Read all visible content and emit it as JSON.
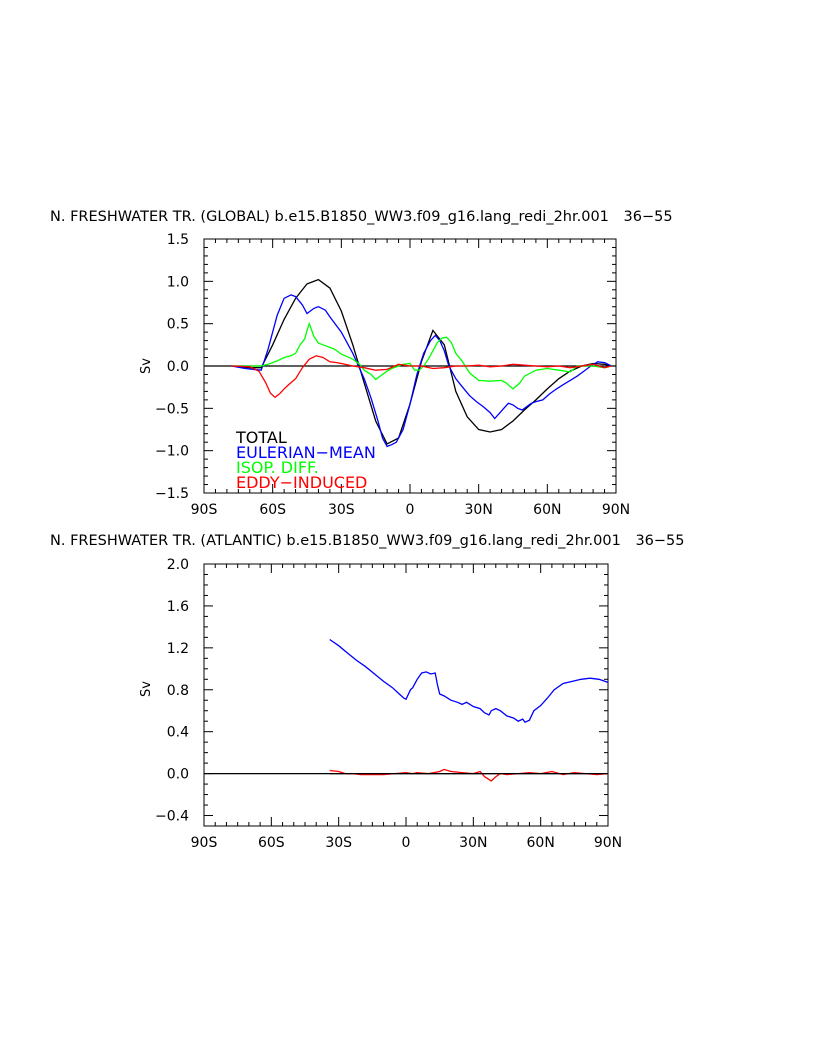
{
  "chart_data": [
    {
      "type": "line",
      "title": "N. FRESHWATER TR. (GLOBAL) b.e15.B1850_WW3.f09_g16.lang_redi_2hr.001 █36-55█",
      "title_text": "N. FRESHWATER TR. (GLOBAL) b.e15.B1850_WW3.f09_g16.lang_redi_2hr.001",
      "title_years": "36−55",
      "xlabel": "",
      "ylabel": "Sv",
      "xlim": [
        -90,
        90
      ],
      "ylim": [
        -1.5,
        1.5
      ],
      "xticks": [
        -90,
        -60,
        -30,
        0,
        30,
        60,
        90
      ],
      "xtick_labels": [
        "90S",
        "60S",
        "30S",
        "0",
        "30N",
        "60N",
        "90N"
      ],
      "yticks": [
        -1.5,
        -1.0,
        -0.5,
        0.0,
        0.5,
        1.0,
        1.5
      ],
      "ytick_labels": [
        "−1.5",
        "−1.0",
        "−0.5",
        "0.0",
        "0.5",
        "1.0",
        "1.5"
      ],
      "zero_line": true,
      "legend_position": "bottom-left",
      "series": [
        {
          "name": "TOTAL",
          "color": "#000000",
          "x": [
            -78,
            -70,
            -65,
            -60,
            -55,
            -50,
            -45,
            -40,
            -35,
            -30,
            -25,
            -20,
            -15,
            -10,
            -5,
            0,
            5,
            10,
            15,
            20,
            25,
            30,
            35,
            40,
            45,
            50,
            55,
            60,
            65,
            70,
            75,
            80,
            85,
            88
          ],
          "y": [
            0.0,
            -0.02,
            -0.02,
            0.25,
            0.55,
            0.8,
            0.97,
            1.02,
            0.92,
            0.65,
            0.25,
            -0.2,
            -0.65,
            -0.92,
            -0.85,
            -0.45,
            0.05,
            0.42,
            0.25,
            -0.3,
            -0.6,
            -0.75,
            -0.78,
            -0.75,
            -0.65,
            -0.52,
            -0.4,
            -0.27,
            -0.15,
            -0.06,
            0.0,
            0.03,
            0.02,
            0.0
          ]
        },
        {
          "name": "EULERIAN−MEAN",
          "color": "#0000ff",
          "x": [
            -78,
            -72,
            -65,
            -62,
            -58,
            -55,
            -52,
            -50,
            -47,
            -45,
            -42,
            -40,
            -37,
            -35,
            -30,
            -25,
            -20,
            -17,
            -14,
            -12,
            -10,
            -8,
            -6,
            -3,
            0,
            3,
            6,
            9,
            11,
            13,
            15,
            17,
            20,
            23,
            26,
            29,
            32,
            35,
            37,
            39,
            41,
            43,
            45,
            47,
            49,
            51,
            53,
            55,
            58,
            61,
            64,
            67,
            70,
            73,
            76,
            79,
            82,
            85,
            88
          ],
          "y": [
            0.0,
            -0.03,
            -0.05,
            0.2,
            0.6,
            0.8,
            0.84,
            0.82,
            0.72,
            0.62,
            0.68,
            0.7,
            0.66,
            0.58,
            0.4,
            0.15,
            -0.15,
            -0.38,
            -0.65,
            -0.85,
            -0.95,
            -0.93,
            -0.9,
            -0.75,
            -0.45,
            -0.1,
            0.15,
            0.3,
            0.36,
            0.3,
            0.18,
            0.0,
            -0.15,
            -0.25,
            -0.35,
            -0.42,
            -0.48,
            -0.55,
            -0.62,
            -0.56,
            -0.5,
            -0.44,
            -0.46,
            -0.5,
            -0.52,
            -0.48,
            -0.44,
            -0.42,
            -0.4,
            -0.33,
            -0.27,
            -0.22,
            -0.17,
            -0.12,
            -0.06,
            0.0,
            0.05,
            0.04,
            0.0
          ]
        },
        {
          "name": "ISOP. DIFF.",
          "color": "#00ff00",
          "x": [
            -78,
            -70,
            -65,
            -62,
            -58,
            -55,
            -52,
            -50,
            -48,
            -46,
            -45,
            -44,
            -42,
            -40,
            -37,
            -33,
            -30,
            -25,
            -22,
            -20,
            -17,
            -15,
            -12,
            -10,
            -8,
            -5,
            -3,
            0,
            2,
            4,
            6,
            8,
            10,
            12,
            14,
            16,
            18,
            20,
            23,
            26,
            30,
            35,
            40,
            42,
            45,
            48,
            50,
            55,
            60,
            65,
            70,
            73,
            76,
            80,
            85,
            88
          ],
          "y": [
            0.0,
            0.0,
            0.0,
            0.02,
            0.06,
            0.1,
            0.12,
            0.15,
            0.25,
            0.32,
            0.42,
            0.5,
            0.35,
            0.27,
            0.24,
            0.2,
            0.14,
            0.08,
            0.02,
            -0.05,
            -0.1,
            -0.16,
            -0.1,
            -0.06,
            -0.03,
            0.0,
            0.02,
            0.03,
            -0.05,
            -0.05,
            0.0,
            0.08,
            0.18,
            0.28,
            0.33,
            0.34,
            0.28,
            0.15,
            0.05,
            -0.08,
            -0.17,
            -0.18,
            -0.17,
            -0.2,
            -0.27,
            -0.2,
            -0.12,
            -0.05,
            -0.03,
            -0.05,
            -0.07,
            0.0,
            0.0,
            0.0,
            -0.02,
            0.0
          ]
        },
        {
          "name": "EDDY−INDUCED",
          "color": "#ff0000",
          "x": [
            -78,
            -70,
            -66,
            -63,
            -61,
            -59,
            -57,
            -55,
            -53,
            -50,
            -47,
            -44,
            -41,
            -38,
            -35,
            -32,
            -30,
            -25,
            -20,
            -15,
            -10,
            -5,
            0,
            5,
            10,
            15,
            20,
            25,
            30,
            35,
            40,
            45,
            50,
            55,
            60,
            65,
            70,
            75,
            80,
            85,
            88
          ],
          "y": [
            0.0,
            -0.01,
            -0.06,
            -0.2,
            -0.32,
            -0.37,
            -0.33,
            -0.27,
            -0.22,
            -0.15,
            -0.02,
            0.08,
            0.12,
            0.1,
            0.05,
            0.04,
            0.03,
            0.0,
            -0.02,
            -0.05,
            -0.04,
            0.02,
            0.0,
            0.0,
            -0.03,
            -0.02,
            0.0,
            0.0,
            0.01,
            -0.01,
            0.0,
            0.02,
            0.01,
            0.0,
            -0.01,
            0.0,
            -0.02,
            0.0,
            0.02,
            -0.02,
            0.0
          ]
        }
      ]
    },
    {
      "type": "line",
      "title": "N. FRESHWATER TR. (ATLANTIC) b.e15.B1850_WW3.f09_g16.lang_redi_2hr.001 █36-55█",
      "title_text": "N. FRESHWATER TR. (ATLANTIC) b.e15.B1850_WW3.f09_g16.lang_redi_2hr.001",
      "title_years": "36−55",
      "xlabel": "",
      "ylabel": "Sv",
      "xlim": [
        -90,
        90
      ],
      "ylim": [
        -0.5,
        2.0
      ],
      "xticks": [
        -90,
        -60,
        -30,
        0,
        30,
        60,
        90
      ],
      "xtick_labels": [
        "90S",
        "60S",
        "30S",
        "0",
        "30N",
        "60N",
        "90N"
      ],
      "yticks": [
        -0.4,
        0.0,
        0.4,
        0.8,
        1.2,
        1.6,
        2.0
      ],
      "ytick_labels": [
        "−0.4",
        "0.0",
        "0.4",
        "0.8",
        "1.2",
        "1.6",
        "2.0"
      ],
      "zero_line": true,
      "series": [
        {
          "name": "EULERIAN−MEAN",
          "color": "#0000ff",
          "x": [
            -34,
            -30,
            -26,
            -22,
            -18,
            -14,
            -10,
            -6,
            -3,
            -1,
            0,
            2,
            3,
            5,
            7,
            9,
            11,
            13,
            14,
            15,
            17,
            20,
            23,
            25,
            27,
            30,
            33,
            35,
            37,
            38,
            40,
            42,
            45,
            48,
            50,
            52,
            53,
            55,
            57,
            60,
            63,
            66,
            70,
            74,
            78,
            82,
            86,
            90
          ],
          "y": [
            1.28,
            1.22,
            1.15,
            1.08,
            1.02,
            0.95,
            0.88,
            0.82,
            0.76,
            0.72,
            0.71,
            0.8,
            0.82,
            0.9,
            0.96,
            0.97,
            0.95,
            0.96,
            0.85,
            0.76,
            0.74,
            0.7,
            0.68,
            0.66,
            0.68,
            0.64,
            0.62,
            0.58,
            0.56,
            0.6,
            0.62,
            0.6,
            0.55,
            0.53,
            0.5,
            0.52,
            0.49,
            0.51,
            0.6,
            0.65,
            0.72,
            0.8,
            0.86,
            0.88,
            0.9,
            0.91,
            0.9,
            0.87
          ]
        },
        {
          "name": "EDDY−INDUCED",
          "color": "#ff0000",
          "x": [
            -34,
            -30,
            -27,
            -24,
            -20,
            -15,
            -10,
            -5,
            0,
            3,
            5,
            10,
            15,
            17,
            20,
            25,
            30,
            33,
            35,
            38,
            40,
            42,
            45,
            50,
            55,
            60,
            65,
            70,
            75,
            80,
            85,
            90
          ],
          "y": [
            0.03,
            0.02,
            0.0,
            0.0,
            -0.01,
            -0.01,
            -0.01,
            0.0,
            0.01,
            0.0,
            0.01,
            0.0,
            0.02,
            0.04,
            0.02,
            0.01,
            0.0,
            0.02,
            -0.03,
            -0.07,
            -0.03,
            0.0,
            -0.01,
            0.0,
            0.01,
            0.0,
            0.02,
            -0.01,
            0.01,
            0.0,
            -0.01,
            0.0
          ]
        },
        {
          "name": "TOTAL",
          "color": "#000000",
          "x": [
            -34,
            0,
            90
          ],
          "y": [
            0.0,
            0.0,
            0.0
          ]
        }
      ]
    }
  ]
}
